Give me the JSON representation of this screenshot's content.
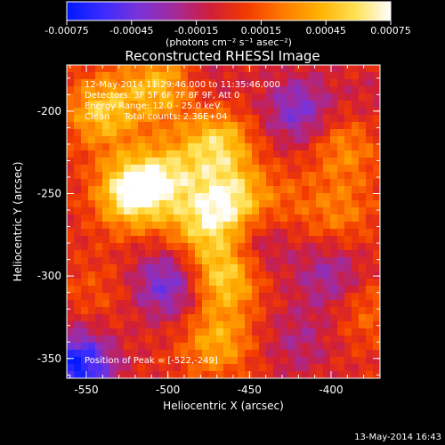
{
  "chart_data": {
    "type": "heatmap",
    "title": "Reconstructed RHESSI Image",
    "xlabel": "Heliocentric X (arcsec)",
    "ylabel": "Heliocentric Y (arcsec)",
    "xlim": [
      -562,
      -370
    ],
    "ylim": [
      -362,
      -172
    ],
    "x_ticks": [
      -550,
      -500,
      -450,
      -400
    ],
    "x_tick_labels": [
      "-550",
      "-500",
      "-450",
      "-400"
    ],
    "y_ticks": [
      -350,
      -300,
      -250,
      -200
    ],
    "y_tick_labels": [
      "-350",
      "-300",
      "-250",
      "-200"
    ],
    "colorbar": {
      "range": [
        -0.00075,
        0.00075
      ],
      "ticks": [
        -0.00075,
        -0.00045,
        -0.00015,
        0.00015,
        0.00045,
        0.00075
      ],
      "tick_labels": [
        "-0.00075",
        "-0.00045",
        "-0.00015",
        "0.00015",
        "0.00045",
        "0.00075"
      ],
      "unit_label": "(photons cm⁻² s⁻¹ asec⁻²)"
    },
    "colormap": [
      "#0018ff",
      "#3a2cff",
      "#7a33d8",
      "#a42a9a",
      "#d01e38",
      "#f23a00",
      "#ff7a00",
      "#ffb000",
      "#ffe050",
      "#ffffff"
    ],
    "grid": false,
    "annotations": [
      "12-May-2014 11:29:46.000 to 11:35:46.000",
      "Detectors: 3F 5F 6F 7F 8F 9F, Att 0",
      "Energy Range: 12.0 - 25.0 keV",
      "Clean     Total counts: 2.36E+04"
    ],
    "peak_label": "Position of Peak = [-522,-249]",
    "peak_position": [
      -522,
      -249
    ],
    "features": [
      {
        "x": -522,
        "y": -249,
        "value": 0.00075
      },
      {
        "x": -540,
        "y": -200,
        "value": 0.0005
      },
      {
        "x": -505,
        "y": -185,
        "value": 0.00045
      },
      {
        "x": -470,
        "y": -220,
        "value": 0.00055
      },
      {
        "x": -462,
        "y": -255,
        "value": 0.0006
      },
      {
        "x": -465,
        "y": -300,
        "value": 0.00055
      },
      {
        "x": -470,
        "y": -340,
        "value": 0.0004
      },
      {
        "x": -480,
        "y": -270,
        "value": 0.0004
      },
      {
        "x": -500,
        "y": -240,
        "value": 0.00045
      },
      {
        "x": -545,
        "y": -310,
        "value": 0.00012
      },
      {
        "x": -392,
        "y": -222,
        "value": 0.0003
      },
      {
        "x": -395,
        "y": -262,
        "value": 0.00025
      },
      {
        "x": -378,
        "y": -320,
        "value": 0.0002
      },
      {
        "x": -430,
        "y": -255,
        "value": 0.00015
      },
      {
        "x": -420,
        "y": -200,
        "value": -0.0004
      },
      {
        "x": -420,
        "y": -340,
        "value": -0.0002
      },
      {
        "x": -400,
        "y": -300,
        "value": -0.0003
      },
      {
        "x": -500,
        "y": -305,
        "value": -0.00045
      },
      {
        "x": -475,
        "y": -185,
        "value": -0.00012
      },
      {
        "x": -555,
        "y": -355,
        "value": -0.0007
      },
      {
        "x": -445,
        "y": -280,
        "value": -0.00025
      },
      {
        "x": -375,
        "y": -195,
        "value": -0.0001
      }
    ]
  },
  "footer": {
    "timestamp": "13-May-2014 16:43"
  }
}
